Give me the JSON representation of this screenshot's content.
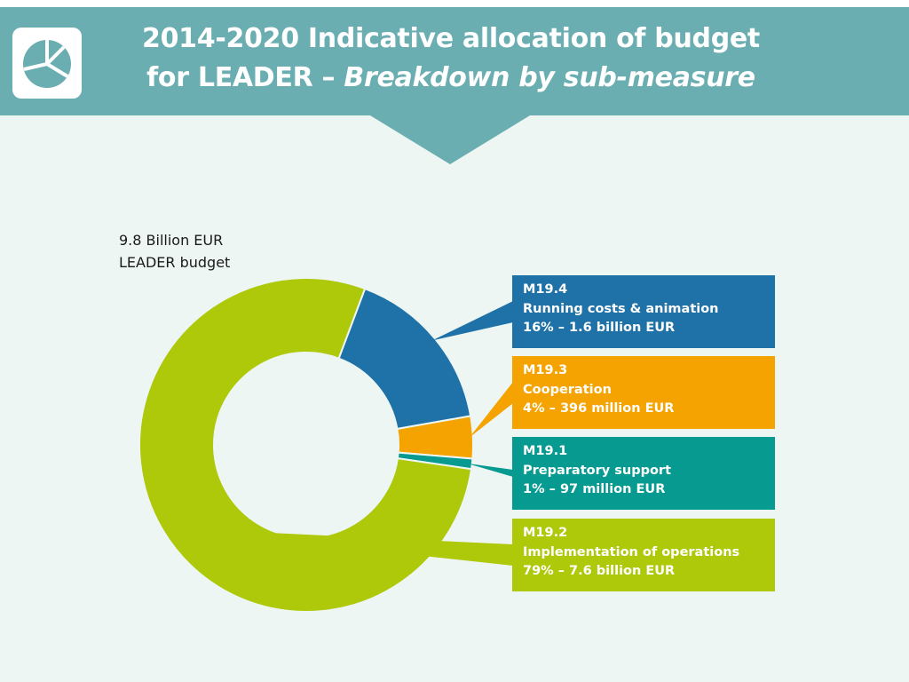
{
  "colors": {
    "banner": "#6aaeb1",
    "background": "#eef6f4",
    "m19_4": "#1f72a8",
    "m19_3": "#f4a300",
    "m19_1": "#069a90",
    "m19_2": "#aec80a"
  },
  "header": {
    "icon": "pie-chart-icon",
    "title_line1": "2014-2020 Indicative allocation of budget",
    "title_line2_regular": "for LEADER – ",
    "title_line2_italic": "Breakdown by sub-measure"
  },
  "budget": {
    "line1": "9.8 Billion EUR",
    "line2": "LEADER budget"
  },
  "chart_data": {
    "type": "pie",
    "donut": true,
    "legend_placement": "right",
    "categories": [
      "M19.4",
      "M19.3",
      "M19.1",
      "M19.2"
    ],
    "values": [
      1.6,
      0.396,
      0.097,
      7.6
    ],
    "units": "billion EUR",
    "slices": [
      {
        "code": "M19.4",
        "label": "Running costs & animation",
        "text": "16% – 1.6 billion EUR",
        "percent": 16,
        "amount": 1.6
      },
      {
        "code": "M19.3",
        "label": "Cooperation",
        "text": "4% – 396 million EUR",
        "percent": 4,
        "amount": 0.396
      },
      {
        "code": "M19.1",
        "label": "Preparatory support",
        "text": "1% – 97 million EUR",
        "percent": 1,
        "amount": 0.097
      },
      {
        "code": "M19.2",
        "label": "Implementation of operations",
        "text": "79% – 7.6 billion EUR",
        "percent": 79,
        "amount": 7.6
      }
    ]
  }
}
